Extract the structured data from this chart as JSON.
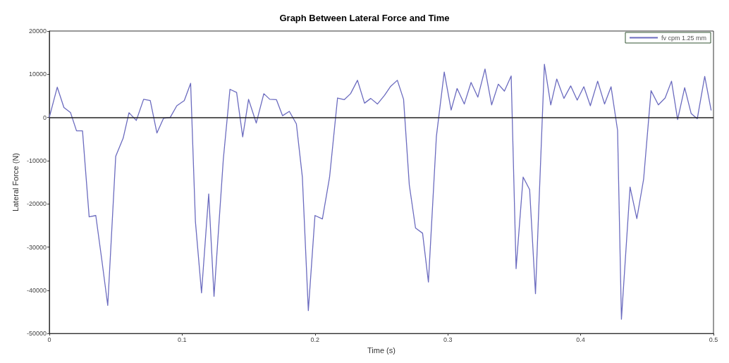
{
  "chart_data": {
    "type": "line",
    "title": "Graph Between Lateral Force and Time",
    "xlabel": "Time (s)",
    "ylabel": "Lateral Force (N)",
    "xlim": [
      0,
      0.5
    ],
    "xticks": [
      0,
      0.1,
      0.2,
      0.3,
      0.4,
      0.5
    ],
    "ylim": [
      -50000,
      20000
    ],
    "yticks": [
      -50000,
      -40000,
      -30000,
      -20000,
      -10000,
      0,
      10000,
      20000
    ],
    "grid": false,
    "legend": "top right",
    "marker": "none",
    "line_style": "solid",
    "ref_lines": [
      {
        "axis": "y",
        "value": 0,
        "color": "#222222"
      }
    ],
    "series": [
      {
        "name": "fv cpm 1.25 mm",
        "color": "#6b6bbf",
        "x": [
          0,
          0.006,
          0.011,
          0.016,
          0.0205,
          0.025,
          0.03,
          0.035,
          0.0395,
          0.044,
          0.05,
          0.0556,
          0.06,
          0.0655,
          0.071,
          0.076,
          0.081,
          0.086,
          0.091,
          0.096,
          0.1016,
          0.1064,
          0.11,
          0.1146,
          0.12,
          0.124,
          0.131,
          0.136,
          0.141,
          0.1456,
          0.15,
          0.1558,
          0.1615,
          0.166,
          0.171,
          0.1756,
          0.1807,
          0.186,
          0.1905,
          0.195,
          0.2,
          0.2056,
          0.211,
          0.217,
          0.222,
          0.2268,
          0.232,
          0.2373,
          0.242,
          0.247,
          0.2523,
          0.257,
          0.262,
          0.2667,
          0.271,
          0.2757,
          0.281,
          0.2854,
          0.2914,
          0.2973,
          0.3025,
          0.307,
          0.3124,
          0.3175,
          0.3226,
          0.328,
          0.333,
          0.338,
          0.3426,
          0.3477,
          0.3514,
          0.3567,
          0.3616,
          0.366,
          0.3727,
          0.3775,
          0.382,
          0.3874,
          0.3925,
          0.3974,
          0.4024,
          0.4073,
          0.4128,
          0.418,
          0.4229,
          0.4278,
          0.4307,
          0.4372,
          0.4423,
          0.4474,
          0.453,
          0.4585,
          0.4636,
          0.4684,
          0.473,
          0.4783,
          0.4832,
          0.4878,
          0.4934,
          0.4982
        ],
        "values": [
          0,
          7000,
          2300,
          1100,
          -3100,
          -3100,
          -23000,
          -22700,
          -32900,
          -43500,
          -9000,
          -4800,
          1100,
          -700,
          4200,
          3900,
          -3600,
          -200,
          0,
          2700,
          3900,
          7900,
          -24100,
          -40600,
          -17700,
          -41400,
          -9700,
          6500,
          5800,
          -4500,
          4200,
          -1300,
          5500,
          4200,
          4100,
          400,
          1400,
          -1500,
          -13800,
          -44700,
          -22700,
          -23500,
          -13800,
          4500,
          4100,
          5500,
          8600,
          3300,
          4400,
          3100,
          5100,
          7200,
          8600,
          4200,
          -15600,
          -25600,
          -26800,
          -38100,
          -4400,
          10500,
          1700,
          6700,
          3100,
          8100,
          4700,
          11200,
          2900,
          7700,
          6100,
          9600,
          -35000,
          -13800,
          -16700,
          -40800,
          12300,
          2900,
          8900,
          4400,
          7300,
          4000,
          7100,
          2700,
          8400,
          3100,
          7100,
          -3000,
          -46700,
          -16100,
          -23400,
          -14300,
          6200,
          2900,
          4500,
          8400,
          -500,
          6900,
          900,
          -300,
          9500,
          1700
        ]
      }
    ]
  }
}
